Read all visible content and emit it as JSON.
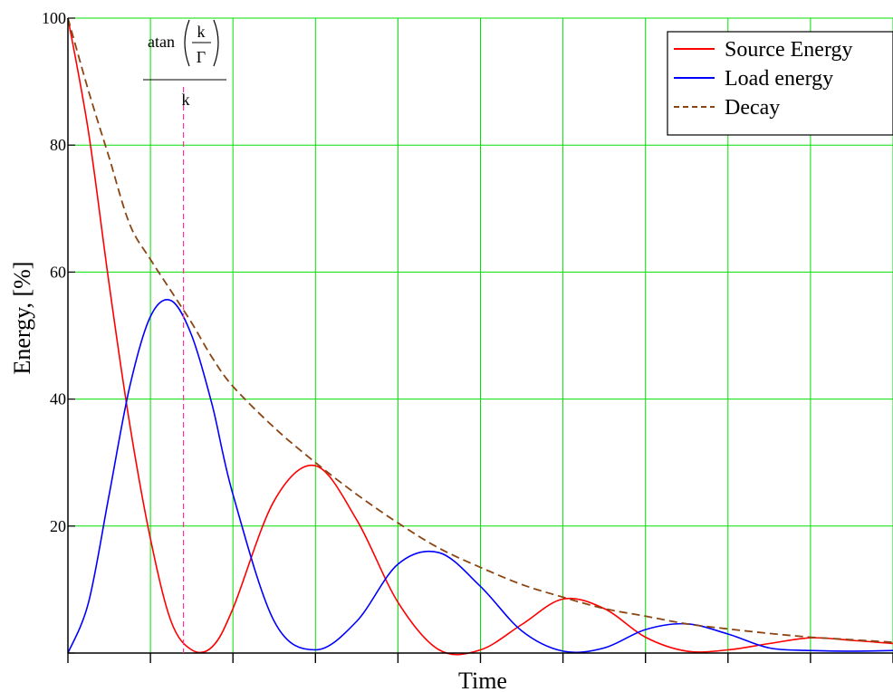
{
  "chart_data": {
    "type": "line",
    "title": "",
    "xlabel": "Time",
    "ylabel": "Energy, [%]",
    "xlim": [
      0,
      10
    ],
    "ylim": [
      0,
      100
    ],
    "yticks": [
      0,
      20,
      40,
      60,
      80,
      100
    ],
    "ytick_labels": [
      "",
      "20",
      "40",
      "60",
      "80",
      "100"
    ],
    "xtick_count": 10,
    "grid": true,
    "grid_color": "#00e000",
    "legend_position": "top-right",
    "series": [
      {
        "name": "Source Energy",
        "color": "#ff0000",
        "style": "solid",
        "x": [
          0,
          0.25,
          0.5,
          0.75,
          1.0,
          1.25,
          1.5,
          1.75,
          2.0,
          2.5,
          3.0,
          3.5,
          4.0,
          4.5,
          5.0,
          5.5,
          6.0,
          6.5,
          7.0,
          7.5,
          8.0,
          8.5,
          9.0,
          9.5,
          10.0
        ],
        "y": [
          100,
          82,
          58,
          36,
          18,
          5,
          0.5,
          1,
          7,
          24,
          29.5,
          21,
          8,
          0.5,
          0.5,
          4.5,
          8.5,
          7,
          2.5,
          0.3,
          0.5,
          1.5,
          2.4,
          2.0,
          1.5
        ]
      },
      {
        "name": "Load energy",
        "color": "#0000ff",
        "style": "solid",
        "x": [
          0,
          0.25,
          0.5,
          0.75,
          1.0,
          1.25,
          1.5,
          1.75,
          2.0,
          2.5,
          3.0,
          3.5,
          4.0,
          4.5,
          5.0,
          5.5,
          6.0,
          6.5,
          7.0,
          7.5,
          8.0,
          8.5,
          9.0,
          9.5,
          10.0
        ],
        "y": [
          0,
          8,
          25,
          42,
          53,
          55.5,
          50,
          39,
          25,
          5,
          0.5,
          5,
          14,
          15.8,
          10.5,
          3.5,
          0.3,
          0.8,
          3.7,
          4.6,
          3,
          0.8,
          0.4,
          0.3,
          0.4
        ]
      },
      {
        "name": "Decay",
        "color": "#8b4513",
        "style": "dashed",
        "x": [
          0,
          0.25,
          0.5,
          0.75,
          1.0,
          1.25,
          1.5,
          1.75,
          2.0,
          2.5,
          3.0,
          3.5,
          4.0,
          4.5,
          5.0,
          5.5,
          6.0,
          6.5,
          7.0,
          7.5,
          8.0,
          8.5,
          9.0,
          9.5,
          10.0
        ],
        "y": [
          100,
          88.5,
          78,
          67.5,
          62,
          57,
          52,
          46.5,
          42,
          35.5,
          30,
          25,
          20.5,
          16.5,
          13.5,
          10.8,
          8.8,
          7.0,
          5.8,
          4.6,
          3.8,
          3.1,
          2.5,
          2.1,
          1.7
        ]
      }
    ],
    "annotation": {
      "x": 1.4,
      "color": "#ff3399",
      "style": "dashed",
      "func": "atan",
      "numerator": "k",
      "denominator_inner": "Γ",
      "denominator": "k"
    }
  }
}
